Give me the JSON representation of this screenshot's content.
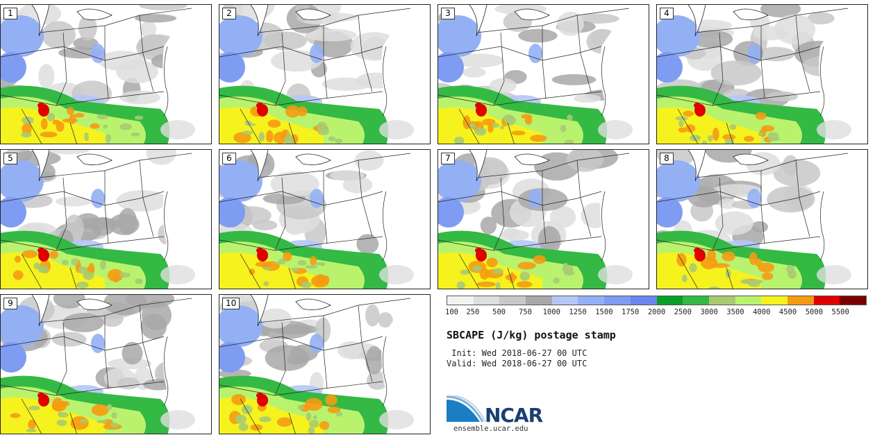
{
  "panels": [
    {
      "label": "1"
    },
    {
      "label": "2"
    },
    {
      "label": "3"
    },
    {
      "label": "4"
    },
    {
      "label": "5"
    },
    {
      "label": "6"
    },
    {
      "label": "7"
    },
    {
      "label": "8"
    },
    {
      "label": "9"
    },
    {
      "label": "10"
    }
  ],
  "colorbar": {
    "ticks": [
      "100",
      "250",
      "500",
      "750",
      "1000",
      "1250",
      "1500",
      "1750",
      "2000",
      "2500",
      "3000",
      "3500",
      "4000",
      "4500",
      "5000",
      "5500"
    ],
    "colors": [
      "#f2f2f2",
      "#dedede",
      "#c8c8c8",
      "#a8a8a8",
      "#b4c7f7",
      "#94b0f5",
      "#7f9cf3",
      "#6a86f0",
      "#0a9e28",
      "#34b944",
      "#a9ca72",
      "#b9f36e",
      "#f6f21e",
      "#f59b12",
      "#e00000",
      "#7a0000"
    ]
  },
  "title": "SBCAPE (J/kg) postage stamp",
  "init": " Init: Wed 2018-06-27 00 UTC",
  "valid": "Valid: Wed 2018-06-27 00 UTC",
  "logo": {
    "text": "NCAR",
    "icon": "ncar-logo-icon"
  },
  "site": "ensemble.ucar.edu"
}
